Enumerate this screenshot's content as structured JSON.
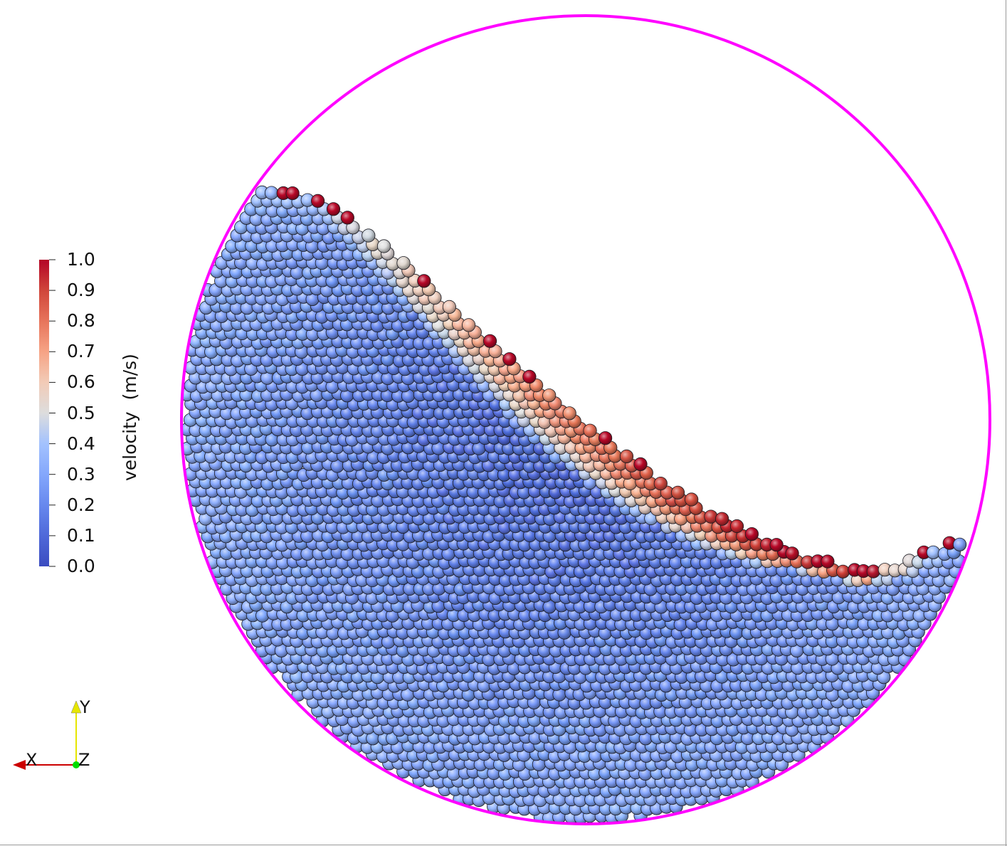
{
  "colorbar": {
    "title": "velocity  (m/s)",
    "ticks": [
      "1.0",
      "0.9",
      "0.8",
      "0.7",
      "0.6",
      "0.5",
      "0.4",
      "0.3",
      "0.2",
      "0.1",
      "0.0"
    ],
    "range": [
      0.0,
      1.0
    ],
    "colors": {
      "low": "#3b4cc0",
      "mid": "#dddddd",
      "high": "#b40426"
    }
  },
  "orientation_axes": {
    "x_label": "X",
    "y_label": "Y",
    "z_label": "Z",
    "colors": {
      "x": "#cc0000",
      "y": "#e6e600",
      "z": "#00dd00"
    }
  },
  "drum": {
    "outline_color": "#ff00ff",
    "particle_colormap": "cool-to-warm"
  }
}
